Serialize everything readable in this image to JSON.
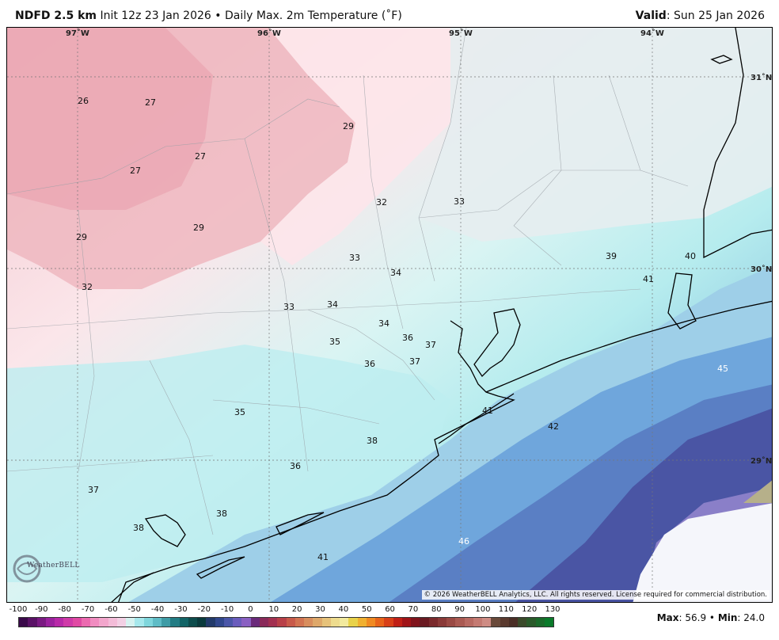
{
  "header": {
    "product": "NDFD 2.5 km",
    "init": "Init 12z 23 Jan 2026",
    "separator": "•",
    "field": "Daily Max. 2m Temperature (˚F)",
    "valid_label": "Valid",
    "valid_date": ": Sun 25 Jan 2026"
  },
  "map": {
    "lon_labels": [
      "97˚W",
      "96˚W",
      "95˚W",
      "94˚W"
    ],
    "lat_labels": [
      "31˚N",
      "30˚N",
      "29˚N"
    ],
    "station_values": [
      "26",
      "27",
      "29",
      "27",
      "27",
      "29",
      "29",
      "32",
      "33",
      "32",
      "33",
      "34",
      "33",
      "34",
      "34",
      "36",
      "37",
      "35",
      "36",
      "37",
      "35",
      "38",
      "36",
      "37",
      "38",
      "38",
      "41",
      "41",
      "39",
      "40",
      "41",
      "45",
      "42",
      "46"
    ],
    "copyright": "© 2026 WeatherBELL Analytics, LLC. All rights reserved. License required for commercial distribution.",
    "logo_text": "WeatherBELL"
  },
  "legend": {
    "ticks": [
      "-100",
      "-90",
      "-80",
      "-70",
      "-60",
      "-50",
      "-40",
      "-30",
      "-20",
      "-10",
      "0",
      "10",
      "20",
      "30",
      "40",
      "50",
      "60",
      "70",
      "80",
      "90",
      "100",
      "110",
      "120",
      "130"
    ],
    "colors": [
      "#3a0a4a",
      "#5a1266",
      "#7a1a82",
      "#9b229e",
      "#b82aa8",
      "#cf3aa8",
      "#e04aa4",
      "#ec6ab0",
      "#f08cc0",
      "#f2a6cc",
      "#f3bcd8",
      "#f2d0e4",
      "#d6f2f0",
      "#a6e8ec",
      "#7fd6dc",
      "#5fbcc6",
      "#3f9ca6",
      "#237c84",
      "#126466",
      "#0d4c4c",
      "#0a3a3c",
      "#223a6a",
      "#31478c",
      "#4b56a8",
      "#6a5cbc",
      "#8a60c2",
      "#6a2a7a",
      "#8a2a5a",
      "#a23050",
      "#b84048",
      "#c85a4a",
      "#d27452",
      "#d88e5e",
      "#dea86a",
      "#e6c27a",
      "#eedc8e",
      "#f2ea9e",
      "#e8d24a",
      "#f0b030",
      "#f08a22",
      "#e8641a",
      "#d84018",
      "#c02016",
      "#a01418",
      "#80141c",
      "#6a1a22",
      "#7a2a2c",
      "#8a3a38",
      "#9a4a44",
      "#aa5a52",
      "#b86a62",
      "#c47a72",
      "#ce8c84",
      "#6a4a3a",
      "#5a3a2e",
      "#4a2e26",
      "#3a4a2a",
      "#2a5a2a",
      "#1a6a2a",
      "#0a7a2a"
    ]
  },
  "summary": {
    "max_label": "Max",
    "max_value": ": 56.9",
    "separator": "•",
    "min_label": "Min",
    "min_value": ": 24.0"
  }
}
